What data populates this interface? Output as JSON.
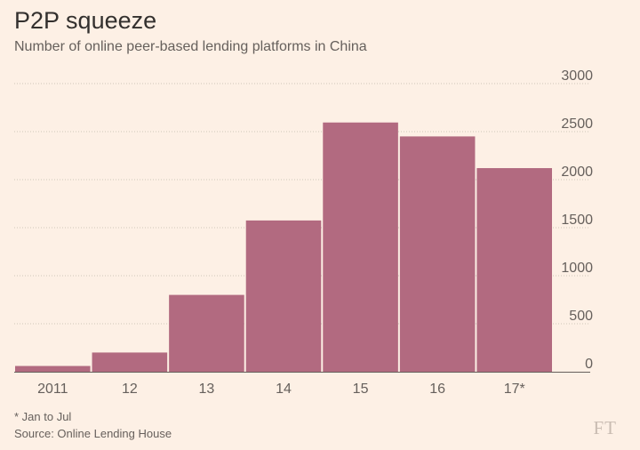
{
  "chart_data": {
    "type": "bar",
    "title": "P2P squeeze",
    "subtitle": "Number of online peer-based lending platforms in China",
    "categories": [
      "2011",
      "12",
      "13",
      "14",
      "15",
      "16",
      "17*"
    ],
    "values": [
      60,
      200,
      800,
      1575,
      2595,
      2450,
      2120
    ],
    "yticks": [
      0,
      500,
      1000,
      1500,
      2000,
      2500,
      3000
    ],
    "ylim": [
      0,
      3000
    ],
    "y_axis_position": "right",
    "grid": true,
    "bar_color": "#b26a80",
    "gridline_color": "#cec6b9",
    "footnote": "* Jan to Jul",
    "source": "Source: Online Lending House"
  },
  "branding": {
    "logo_text": "FT",
    "logo_icon": "ft-logo-icon"
  }
}
